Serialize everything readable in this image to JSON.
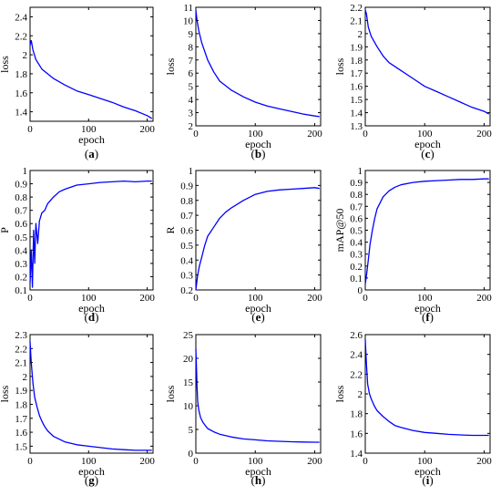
{
  "chart_data": [
    {
      "type": "line",
      "caption": "(a)",
      "xlabel": "epoch",
      "ylabel": "loss",
      "xlim": [
        0,
        210
      ],
      "ylim": [
        1.3,
        2.5
      ],
      "xticks": [
        0,
        100,
        200
      ],
      "yticks": [
        1.4,
        1.6,
        1.8,
        2,
        2.2,
        2.4
      ],
      "series": [
        {
          "color": "#0000ff",
          "x": [
            0,
            2,
            5,
            10,
            20,
            40,
            60,
            80,
            100,
            120,
            140,
            160,
            180,
            200,
            208
          ],
          "y": [
            2.1,
            2.15,
            2.05,
            1.95,
            1.85,
            1.75,
            1.68,
            1.62,
            1.58,
            1.54,
            1.5,
            1.45,
            1.41,
            1.36,
            1.33
          ]
        }
      ]
    },
    {
      "type": "line",
      "caption": "(b)",
      "xlabel": "epoch",
      "ylabel": "loss",
      "xlim": [
        0,
        210
      ],
      "ylim": [
        2,
        11
      ],
      "xticks": [
        0,
        100,
        200
      ],
      "yticks": [
        2,
        3,
        4,
        5,
        6,
        7,
        8,
        9,
        10,
        11
      ],
      "series": [
        {
          "color": "#0000ff",
          "x": [
            0,
            2,
            5,
            10,
            20,
            30,
            40,
            60,
            80,
            100,
            120,
            140,
            160,
            180,
            200,
            208
          ],
          "y": [
            10.8,
            10,
            9.2,
            8.3,
            7,
            6.1,
            5.4,
            4.7,
            4.2,
            3.8,
            3.5,
            3.3,
            3.1,
            2.9,
            2.75,
            2.7
          ]
        }
      ]
    },
    {
      "type": "line",
      "caption": "(c)",
      "xlabel": "epoch",
      "ylabel": "loss",
      "xlim": [
        0,
        210
      ],
      "ylim": [
        1.3,
        2.2
      ],
      "xticks": [
        0,
        100,
        200
      ],
      "yticks": [
        1.3,
        1.4,
        1.5,
        1.6,
        1.7,
        1.8,
        1.9,
        2,
        2.1,
        2.2
      ],
      "series": [
        {
          "color": "#0000ff",
          "x": [
            0,
            2,
            5,
            10,
            20,
            30,
            40,
            60,
            80,
            100,
            120,
            140,
            160,
            180,
            200,
            208
          ],
          "y": [
            2.18,
            2.15,
            2.05,
            1.98,
            1.9,
            1.83,
            1.78,
            1.72,
            1.66,
            1.6,
            1.56,
            1.52,
            1.48,
            1.44,
            1.41,
            1.39
          ]
        }
      ]
    },
    {
      "type": "line",
      "caption": "(d)",
      "xlabel": "epoch",
      "ylabel": "P",
      "xlim": [
        0,
        210
      ],
      "ylim": [
        0.1,
        1
      ],
      "xticks": [
        0,
        100,
        200
      ],
      "yticks": [
        0.1,
        0.2,
        0.3,
        0.4,
        0.5,
        0.6,
        0.7,
        0.8,
        0.9,
        1
      ],
      "series": [
        {
          "color": "#0000ff",
          "x": [
            0,
            2,
            4,
            6,
            8,
            10,
            13,
            16,
            20,
            25,
            30,
            40,
            50,
            60,
            80,
            100,
            120,
            140,
            160,
            180,
            200,
            208
          ],
          "y": [
            0.15,
            0.4,
            0.12,
            0.55,
            0.3,
            0.6,
            0.45,
            0.62,
            0.68,
            0.7,
            0.75,
            0.8,
            0.84,
            0.86,
            0.89,
            0.9,
            0.91,
            0.915,
            0.92,
            0.915,
            0.92,
            0.92
          ]
        }
      ]
    },
    {
      "type": "line",
      "caption": "(e)",
      "xlabel": "epoch",
      "ylabel": "R",
      "xlim": [
        0,
        210
      ],
      "ylim": [
        0.2,
        1
      ],
      "xticks": [
        0,
        100,
        200
      ],
      "yticks": [
        0.2,
        0.3,
        0.4,
        0.5,
        0.6,
        0.7,
        0.8,
        0.9,
        1
      ],
      "series": [
        {
          "color": "#0000ff",
          "x": [
            0,
            3,
            6,
            10,
            15,
            20,
            30,
            40,
            50,
            60,
            80,
            100,
            120,
            140,
            160,
            180,
            200,
            208
          ],
          "y": [
            0.2,
            0.3,
            0.36,
            0.42,
            0.5,
            0.56,
            0.62,
            0.68,
            0.72,
            0.75,
            0.8,
            0.84,
            0.86,
            0.87,
            0.875,
            0.88,
            0.885,
            0.88
          ]
        }
      ]
    },
    {
      "type": "line",
      "caption": "(f)",
      "xlabel": "epoch",
      "ylabel": "mAP@50",
      "xlim": [
        0,
        210
      ],
      "ylim": [
        0,
        1
      ],
      "xticks": [
        0,
        100,
        200
      ],
      "yticks": [
        0,
        0.1,
        0.2,
        0.3,
        0.4,
        0.5,
        0.6,
        0.7,
        0.8,
        0.9,
        1
      ],
      "series": [
        {
          "color": "#0000ff",
          "x": [
            0,
            2,
            5,
            8,
            12,
            16,
            20,
            25,
            30,
            40,
            50,
            60,
            80,
            100,
            120,
            140,
            160,
            180,
            200,
            208
          ],
          "y": [
            0.05,
            0.12,
            0.25,
            0.38,
            0.5,
            0.6,
            0.68,
            0.73,
            0.78,
            0.83,
            0.86,
            0.88,
            0.9,
            0.91,
            0.915,
            0.92,
            0.925,
            0.925,
            0.93,
            0.93
          ]
        }
      ]
    },
    {
      "type": "line",
      "caption": "(g)",
      "xlabel": "epoch",
      "ylabel": "loss",
      "xlim": [
        0,
        210
      ],
      "ylim": [
        1.45,
        2.3
      ],
      "xticks": [
        0,
        100,
        200
      ],
      "yticks": [
        1.5,
        1.6,
        1.7,
        1.8,
        1.9,
        2,
        2.1,
        2.2,
        2.3
      ],
      "series": [
        {
          "color": "#0000ff",
          "x": [
            0,
            2,
            5,
            8,
            12,
            16,
            20,
            25,
            30,
            40,
            50,
            60,
            80,
            100,
            120,
            140,
            160,
            180,
            200,
            208
          ],
          "y": [
            2.25,
            2.1,
            1.95,
            1.85,
            1.78,
            1.72,
            1.68,
            1.64,
            1.61,
            1.57,
            1.55,
            1.53,
            1.51,
            1.5,
            1.49,
            1.48,
            1.475,
            1.47,
            1.47,
            1.47
          ]
        }
      ]
    },
    {
      "type": "line",
      "caption": "(h)",
      "xlabel": "epoch",
      "ylabel": "loss",
      "xlim": [
        0,
        210
      ],
      "ylim": [
        0,
        25
      ],
      "xticks": [
        0,
        100,
        200
      ],
      "yticks": [
        0,
        5,
        10,
        15,
        20,
        25
      ],
      "series": [
        {
          "color": "#0000ff",
          "x": [
            0,
            1,
            2,
            3,
            5,
            8,
            12,
            16,
            20,
            30,
            40,
            60,
            80,
            100,
            120,
            140,
            160,
            180,
            200,
            208
          ],
          "y": [
            22,
            18,
            14,
            11,
            9,
            7.5,
            6.5,
            5.8,
            5.2,
            4.5,
            4,
            3.4,
            3,
            2.8,
            2.6,
            2.5,
            2.4,
            2.35,
            2.3,
            2.3
          ]
        }
      ]
    },
    {
      "type": "line",
      "caption": "(i)",
      "xlabel": "epoch",
      "ylabel": "loss",
      "xlim": [
        0,
        210
      ],
      "ylim": [
        1.4,
        2.6
      ],
      "xticks": [
        0,
        100,
        200
      ],
      "yticks": [
        1.4,
        1.6,
        1.8,
        2,
        2.2,
        2.4,
        2.6
      ],
      "series": [
        {
          "color": "#0000ff",
          "x": [
            0,
            2,
            4,
            7,
            10,
            15,
            20,
            30,
            40,
            50,
            60,
            80,
            100,
            120,
            140,
            160,
            180,
            200,
            208
          ],
          "y": [
            2.55,
            2.3,
            2.1,
            2,
            1.95,
            1.88,
            1.83,
            1.77,
            1.72,
            1.68,
            1.66,
            1.63,
            1.61,
            1.6,
            1.59,
            1.585,
            1.58,
            1.58,
            1.58
          ]
        }
      ]
    }
  ]
}
